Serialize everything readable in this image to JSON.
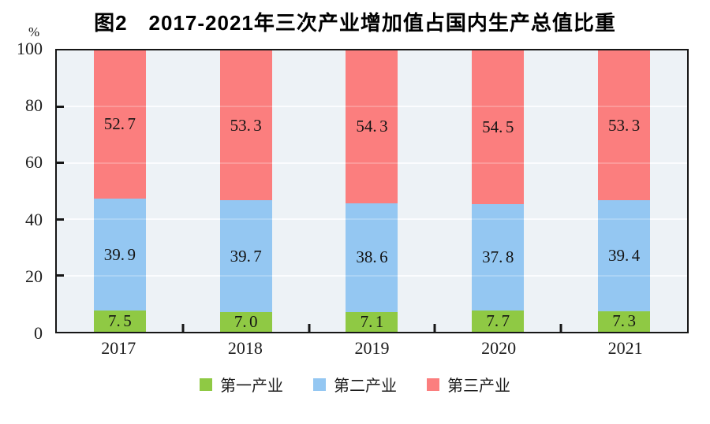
{
  "chart_data": {
    "type": "bar",
    "stacked": true,
    "title": "图2　2017-2021年三次产业增加值占国内生产总值比重",
    "categories": [
      "2017",
      "2018",
      "2019",
      "2020",
      "2021"
    ],
    "series": [
      {
        "name": "第一产业",
        "color": "#8fc944",
        "values": [
          7.5,
          7.0,
          7.1,
          7.7,
          7.3
        ]
      },
      {
        "name": "第二产业",
        "color": "#94c7f2",
        "values": [
          39.9,
          39.7,
          38.6,
          37.8,
          39.4
        ]
      },
      {
        "name": "第三产业",
        "color": "#fb7e7e",
        "values": [
          52.7,
          53.3,
          54.3,
          54.5,
          53.3
        ]
      }
    ],
    "xlabel": "",
    "ylabel": "%",
    "ylim": [
      0,
      100
    ],
    "y_ticks": [
      0,
      20,
      40,
      60,
      80,
      100
    ],
    "grid_values": [
      20,
      40,
      60,
      80
    ],
    "grid": true,
    "legend_position": "bottom",
    "colors": {
      "plot_background": "#edf2f6",
      "axis": "#161616",
      "gridline": "#fafcfe",
      "label_text": "#141414"
    }
  }
}
